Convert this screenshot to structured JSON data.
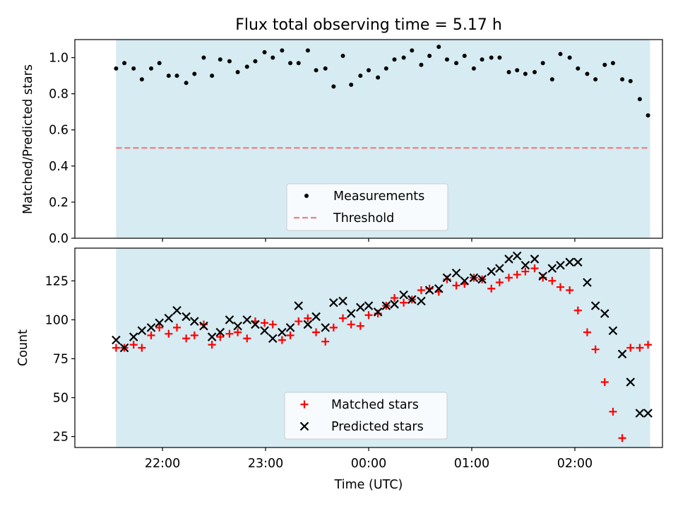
{
  "title": "Flux total observing time = 5.17 h",
  "colors": {
    "band": "#add8e6",
    "band_opacity": 0.5,
    "measurements": "#000000",
    "threshold": "#f08080",
    "matched": "#ff0000",
    "predicted": "#000000"
  },
  "chart_data": [
    {
      "type": "scatter",
      "ylabel": "Matched/Predicted stars",
      "xlabel": "",
      "xlim": [
        -1.85,
        3.85
      ],
      "ylim": [
        0,
        1.1
      ],
      "band": [
        -1.45,
        3.73
      ],
      "yticks": [
        0.0,
        0.2,
        0.4,
        0.6,
        0.8,
        1.0
      ],
      "ytick_labels": [
        "0.0",
        "0.2",
        "0.4",
        "0.6",
        "0.8",
        "1.0"
      ],
      "xticks": [
        -1,
        0,
        1,
        2,
        3
      ],
      "grid": false,
      "legend_position": "lower center",
      "series": [
        {
          "name": "Measurements",
          "kind": "points",
          "x": [
            -1.45,
            -1.37,
            -1.28,
            -1.2,
            -1.11,
            -1.03,
            -0.94,
            -0.86,
            -0.77,
            -0.69,
            -0.6,
            -0.52,
            -0.44,
            -0.35,
            -0.27,
            -0.18,
            -0.1,
            -0.01,
            0.07,
            0.16,
            0.24,
            0.32,
            0.41,
            0.49,
            0.58,
            0.66,
            0.75,
            0.83,
            0.92,
            1.0,
            1.09,
            1.17,
            1.25,
            1.34,
            1.42,
            1.51,
            1.59,
            1.68,
            1.76,
            1.85,
            1.93,
            2.02,
            2.1,
            2.19,
            2.27,
            2.36,
            2.44,
            2.52,
            2.61,
            2.69,
            2.78,
            2.86,
            2.95,
            3.03,
            3.12,
            3.2,
            3.29,
            3.37,
            3.46,
            3.54,
            3.63,
            3.71
          ],
          "y": [
            0.94,
            0.97,
            0.94,
            0.88,
            0.94,
            0.97,
            0.9,
            0.9,
            0.86,
            0.91,
            1.0,
            0.9,
            0.99,
            0.98,
            0.92,
            0.95,
            0.98,
            1.03,
            1.0,
            1.04,
            0.97,
            0.97,
            1.04,
            0.93,
            0.94,
            0.84,
            1.01,
            0.85,
            0.9,
            0.93,
            0.89,
            0.94,
            0.99,
            1.0,
            1.04,
            0.96,
            1.01,
            1.06,
            0.99,
            0.97,
            1.01,
            0.94,
            0.99,
            1.0,
            1.0,
            0.92,
            0.93,
            0.91,
            0.92,
            0.97,
            0.88,
            1.02,
            1.0,
            0.94,
            0.91,
            0.88,
            0.96,
            0.97,
            0.88,
            0.87,
            0.77,
            0.68
          ]
        },
        {
          "name": "Threshold",
          "kind": "hline",
          "y": 0.5
        }
      ]
    },
    {
      "type": "scatter",
      "ylabel": "Count",
      "xlabel": "Time (UTC)",
      "xlim": [
        -1.85,
        3.85
      ],
      "ylim": [
        18,
        146
      ],
      "band": [
        -1.45,
        3.73
      ],
      "yticks": [
        25,
        50,
        75,
        100,
        125
      ],
      "ytick_labels": [
        "25",
        "50",
        "75",
        "100",
        "125"
      ],
      "xticks": [
        -1,
        0,
        1,
        2,
        3
      ],
      "xtick_labels": [
        "22:00",
        "23:00",
        "00:00",
        "01:00",
        "02:00"
      ],
      "grid": false,
      "legend_position": "lower center",
      "series": [
        {
          "name": "Matched stars",
          "kind": "plus",
          "x": [
            -1.45,
            -1.37,
            -1.28,
            -1.2,
            -1.11,
            -1.03,
            -0.94,
            -0.86,
            -0.77,
            -0.69,
            -0.6,
            -0.52,
            -0.44,
            -0.35,
            -0.27,
            -0.18,
            -0.1,
            -0.01,
            0.07,
            0.16,
            0.24,
            0.32,
            0.41,
            0.49,
            0.58,
            0.66,
            0.75,
            0.83,
            0.92,
            1.0,
            1.09,
            1.17,
            1.25,
            1.34,
            1.42,
            1.51,
            1.59,
            1.68,
            1.76,
            1.85,
            1.93,
            2.02,
            2.1,
            2.19,
            2.27,
            2.36,
            2.44,
            2.52,
            2.61,
            2.69,
            2.78,
            2.86,
            2.95,
            3.03,
            3.12,
            3.2,
            3.29,
            3.37,
            3.46,
            3.54,
            3.63,
            3.71
          ],
          "y": [
            82,
            82,
            84,
            82,
            90,
            95,
            91,
            95,
            88,
            90,
            97,
            84,
            89,
            91,
            92,
            88,
            99,
            98,
            97,
            87,
            90,
            99,
            101,
            92,
            86,
            95,
            101,
            97,
            96,
            103,
            104,
            109,
            114,
            111,
            113,
            119,
            120,
            118,
            126,
            122,
            123,
            127,
            126,
            120,
            124,
            127,
            129,
            131,
            133,
            127,
            125,
            121,
            119,
            106,
            92,
            81,
            60,
            41,
            24,
            82,
            82,
            84
          ]
        },
        {
          "name": "Predicted stars",
          "kind": "x",
          "x": [
            -1.45,
            -1.37,
            -1.28,
            -1.2,
            -1.11,
            -1.03,
            -0.94,
            -0.86,
            -0.77,
            -0.69,
            -0.6,
            -0.52,
            -0.44,
            -0.35,
            -0.27,
            -0.18,
            -0.1,
            -0.01,
            0.07,
            0.16,
            0.24,
            0.32,
            0.41,
            0.49,
            0.58,
            0.66,
            0.75,
            0.83,
            0.92,
            1.0,
            1.09,
            1.17,
            1.25,
            1.34,
            1.42,
            1.51,
            1.59,
            1.68,
            1.76,
            1.85,
            1.93,
            2.02,
            2.1,
            2.19,
            2.27,
            2.36,
            2.44,
            2.52,
            2.61,
            2.69,
            2.78,
            2.86,
            2.95,
            3.03,
            3.12,
            3.2,
            3.29,
            3.37,
            3.46,
            3.54,
            3.63,
            3.71
          ],
          "y": [
            87,
            82,
            89,
            93,
            95,
            98,
            101,
            106,
            102,
            99,
            96,
            89,
            92,
            100,
            96,
            100,
            97,
            93,
            88,
            92,
            95,
            109,
            97,
            102,
            95,
            111,
            112,
            104,
            108,
            109,
            105,
            109,
            110,
            116,
            113,
            112,
            119,
            120,
            127,
            130,
            125,
            127,
            126,
            131,
            133,
            139,
            141,
            135,
            139,
            128,
            133,
            135,
            137,
            137,
            124,
            109,
            104,
            93,
            78,
            60,
            40,
            40
          ]
        }
      ]
    }
  ]
}
